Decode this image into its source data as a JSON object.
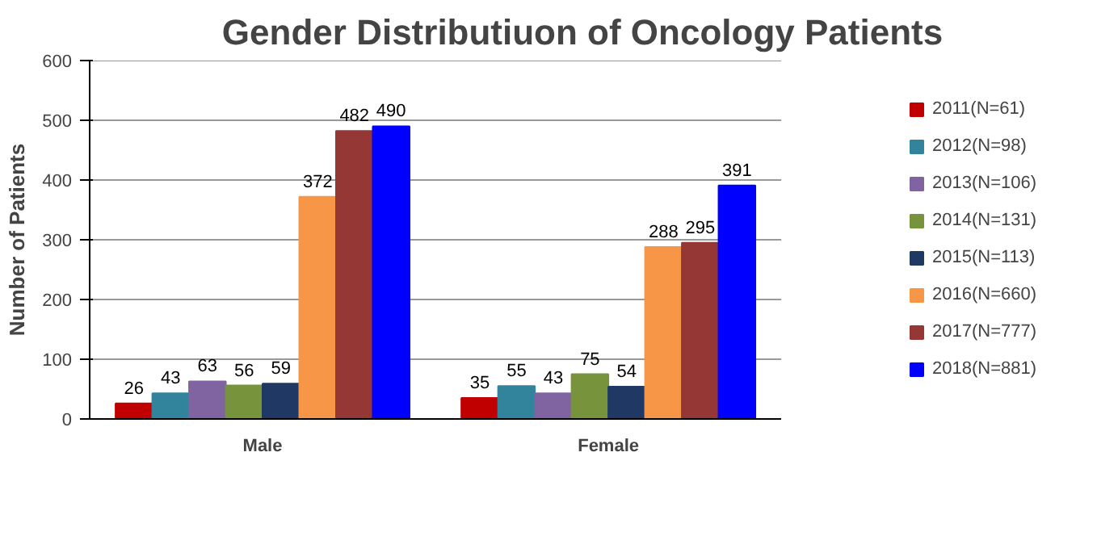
{
  "chart_data": {
    "type": "bar",
    "title": "Gender Distributiuon of Oncology Patients",
    "ylabel": "Number of Patients",
    "categories": [
      "Male",
      "Female"
    ],
    "series": [
      {
        "name": "2011(N=61)",
        "color": "#c00000",
        "values": [
          26,
          35
        ]
      },
      {
        "name": "2012(N=98)",
        "color": "#31849b",
        "values": [
          43,
          55
        ]
      },
      {
        "name": "2013(N=106)",
        "color": "#8064a2",
        "values": [
          63,
          43
        ]
      },
      {
        "name": "2014(N=131)",
        "color": "#77933c",
        "values": [
          56,
          75
        ]
      },
      {
        "name": "2015(N=113)",
        "color": "#1f3864",
        "values": [
          59,
          54
        ]
      },
      {
        "name": "2016(N=660)",
        "color": "#f79646",
        "values": [
          372,
          288
        ]
      },
      {
        "name": "2017(N=777)",
        "color": "#953735",
        "values": [
          482,
          295
        ]
      },
      {
        "name": "2018(N=881)",
        "color": "#0000ff",
        "values": [
          490,
          391
        ]
      }
    ],
    "ylim": [
      0,
      600
    ],
    "yticks": [
      0,
      100,
      200,
      300,
      400,
      500,
      600
    ],
    "grid": "y",
    "legend": "right",
    "data_labels": true
  }
}
